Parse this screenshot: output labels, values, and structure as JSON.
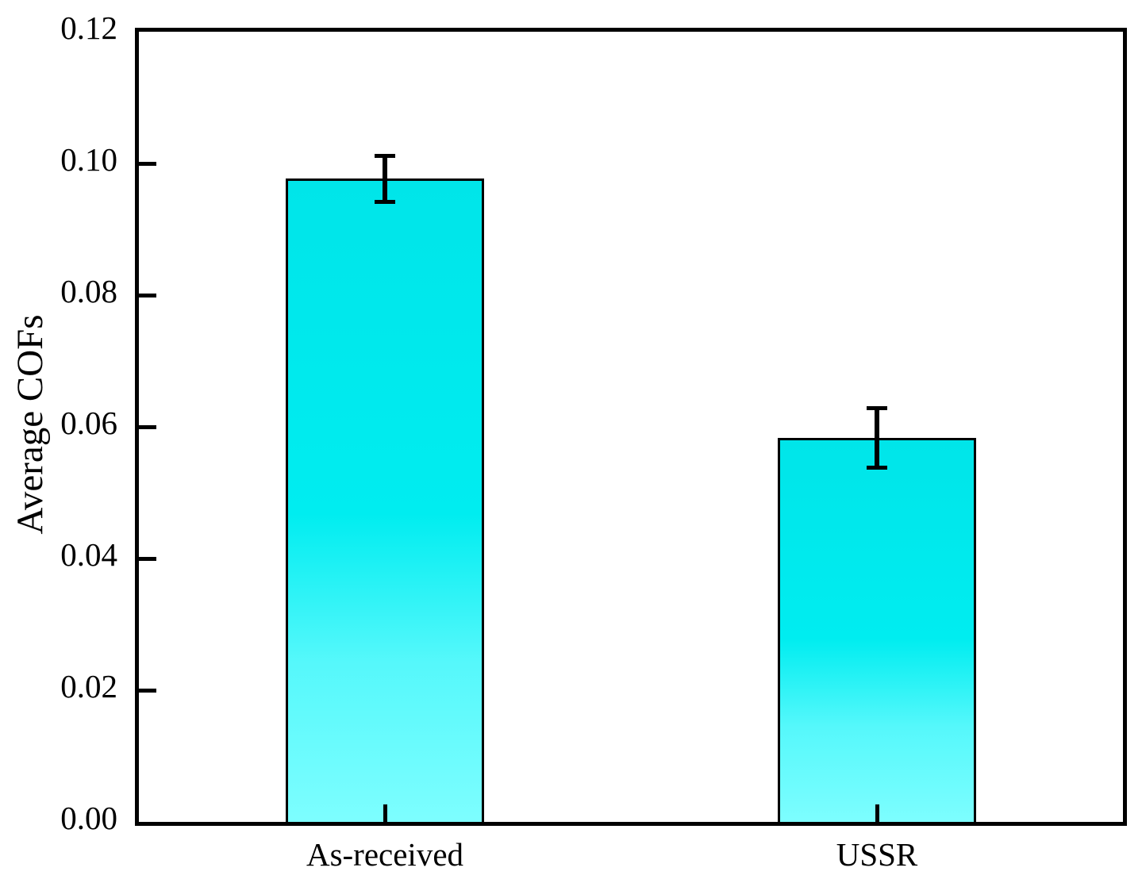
{
  "chart_data": {
    "type": "bar",
    "categories": [
      "As-received",
      "USSR"
    ],
    "values": [
      0.0977,
      0.0583
    ],
    "errors": [
      0.0035,
      0.0045
    ],
    "title": "",
    "xlabel": "",
    "ylabel": "Average COFs",
    "ylim": [
      0,
      0.12
    ],
    "ytick_values": [
      0,
      0.02,
      0.04,
      0.06,
      0.08,
      0.1,
      0.12
    ],
    "ytick_labels": [
      "0.00",
      "0.02",
      "0.04",
      "0.06",
      "0.08",
      "0.10",
      "0.12"
    ],
    "grid": false,
    "legend": "none",
    "tick_direction": "in",
    "frame": "full-box",
    "colors": {
      "bar_gradient_top": "#00e5e9",
      "bar_gradient_mid": "#00edf0",
      "bar_gradient_lower": "#55f8fb",
      "bar_gradient_bottom": "#7dfeff",
      "bar_border": "#000000",
      "axis": "#000000",
      "background": "#ffffff",
      "text": "#000000"
    }
  }
}
